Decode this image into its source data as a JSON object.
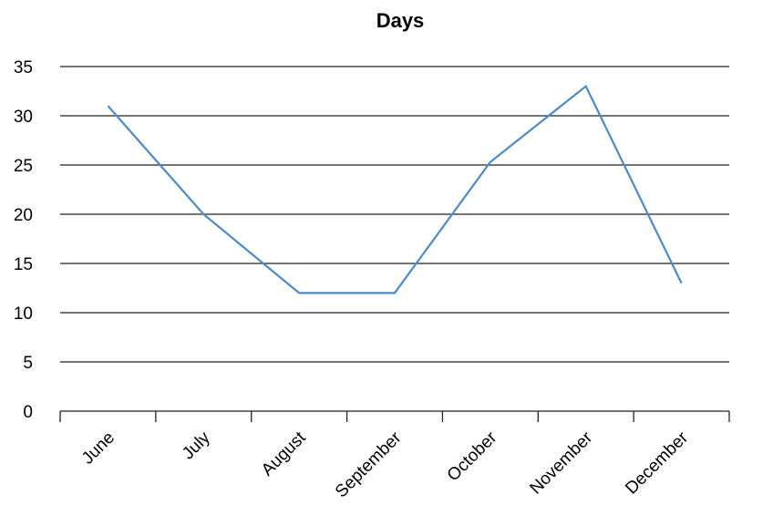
{
  "chart_data": {
    "type": "line",
    "title": "Days",
    "xlabel": "",
    "ylabel": "",
    "categories": [
      "June",
      "July",
      "August",
      "September",
      "October",
      "November",
      "December"
    ],
    "series": [
      {
        "name": "",
        "values": [
          31,
          20,
          12,
          12,
          25.3,
          33,
          13
        ],
        "color": "#4a8bc8"
      }
    ],
    "ylim": [
      0,
      35
    ],
    "yticks": [
      0,
      5,
      10,
      15,
      20,
      25,
      30,
      35
    ],
    "grid": true,
    "legend": "none",
    "gridline_color": "#222222"
  }
}
